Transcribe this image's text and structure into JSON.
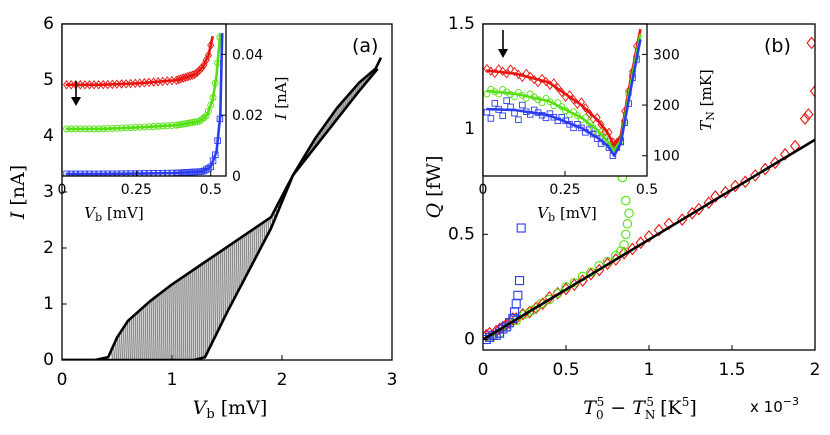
{
  "panels": {
    "a": {
      "label": "(a)",
      "xlabel_main": "V",
      "xlabel_sub": "b",
      "xlabel_unit": " [mV]",
      "ylabel_main": "I",
      "ylabel_unit": " [nA]",
      "xticks": [
        "0",
        "1",
        "2",
        "3"
      ],
      "yticks": [
        "0",
        "1",
        "2",
        "3",
        "4",
        "5",
        "6"
      ],
      "inset": {
        "xlabel_main": "V",
        "xlabel_sub": "b",
        "xlabel_unit": " [mV]",
        "ylabel_main": "I",
        "ylabel_unit": " [nA]",
        "xticks": [
          "0",
          "0.25",
          "0.5"
        ],
        "yticks": [
          "0",
          "0.02",
          "0.04"
        ]
      }
    },
    "b": {
      "label": "(b)",
      "xlabel_main": "T",
      "xlabel_sub0": "0",
      "xlabel_sup": "5",
      "xlabel_mid": " − T",
      "xlabel_sub1": "N",
      "xlabel_unit_a": " [K",
      "xlabel_unit_sup": "5",
      "xlabel_unit_b": "]",
      "ylabel_main": "Q",
      "ylabel_unit": " [fW]",
      "xticks": [
        "0",
        "0.5",
        "1",
        "1.5",
        "2"
      ],
      "yticks": [
        "0",
        "0.5",
        "1",
        "1.5"
      ],
      "x_multiplier": "x 10",
      "x_multiplier_exp": "−3",
      "inset": {
        "xlabel_main": "V",
        "xlabel_sub": "b",
        "xlabel_unit": " [mV]",
        "ylabel_main": "T",
        "ylabel_sub": "N",
        "ylabel_unit": " [mK]",
        "xticks": [
          "0",
          "0.25",
          "0.5"
        ],
        "yticks": [
          "100",
          "200",
          "300"
        ]
      }
    }
  },
  "colors": {
    "red": "#e8140f",
    "green": "#55e010",
    "blue": "#2b3cf0",
    "black": "#000000",
    "gray": "#8a8a8a"
  },
  "chart_data": [
    {
      "type": "line",
      "panel": "a",
      "xlim": [
        0,
        3
      ],
      "ylim": [
        0,
        6
      ],
      "grid": false,
      "series": [
        {
          "x": [
            0,
            0.3,
            0.42,
            0.5,
            0.6,
            0.8,
            1.0,
            1.3,
            1.6,
            1.9,
            2.1,
            2.3,
            2.5,
            2.7,
            2.87
          ],
          "y": [
            0,
            0,
            0.05,
            0.4,
            0.7,
            1.05,
            1.35,
            1.75,
            2.15,
            2.55,
            3.3,
            3.8,
            4.3,
            4.8,
            5.2
          ]
        },
        {
          "x": [
            0,
            0.8,
            1.2,
            1.3,
            1.35,
            1.5,
            1.7,
            1.9,
            2.1,
            2.3,
            2.5,
            2.7,
            2.85,
            2.9
          ],
          "y": [
            0,
            0,
            0,
            0.05,
            0.25,
            0.85,
            1.6,
            2.35,
            3.3,
            3.95,
            4.5,
            4.95,
            5.2,
            5.4
          ]
        }
      ]
    },
    {
      "type": "line",
      "panel": "a-inset",
      "xlim": [
        0,
        0.43
      ],
      "ylim": [
        0,
        0.05
      ],
      "series": [
        {
          "color": "red",
          "x": [
            0.01,
            0.1,
            0.2,
            0.3,
            0.35,
            0.37,
            0.385,
            0.395
          ],
          "y": [
            0.03,
            0.03,
            0.0305,
            0.0315,
            0.0335,
            0.036,
            0.04,
            0.046
          ]
        },
        {
          "color": "green",
          "x": [
            0.01,
            0.1,
            0.2,
            0.3,
            0.36,
            0.38,
            0.395,
            0.405,
            0.415
          ],
          "y": [
            0.0155,
            0.0155,
            0.016,
            0.0167,
            0.018,
            0.02,
            0.025,
            0.033,
            0.047
          ]
        },
        {
          "color": "blue",
          "x": [
            0.01,
            0.1,
            0.2,
            0.3,
            0.37,
            0.39,
            0.405,
            0.415,
            0.42
          ],
          "y": [
            0.0007,
            0.0007,
            0.0008,
            0.001,
            0.0015,
            0.003,
            0.008,
            0.02,
            0.047
          ]
        }
      ]
    },
    {
      "type": "scatter",
      "panel": "b",
      "xlim": [
        0,
        0.002
      ],
      "ylim": [
        -0.05,
        1.5
      ],
      "grid": false,
      "fit_line": {
        "x": [
          0,
          0.002
        ],
        "y": [
          0,
          0.95
        ]
      },
      "series": [
        {
          "color": "red",
          "marker": "diamond",
          "x": [
            2e-05,
            4e-05,
            6e-05,
            8e-05,
            0.0001,
            0.00012,
            0.00014,
            0.00016,
            0.00018,
            0.0002,
            0.00024,
            0.00028,
            0.00032,
            0.00036,
            0.0004,
            0.00045,
            0.0005,
            0.00055,
            0.0006,
            0.00065,
            0.0007,
            0.00075,
            0.0008,
            0.00085,
            0.0009,
            0.00095,
            0.001,
            0.00106,
            0.00112,
            0.0012,
            0.00126,
            0.0013,
            0.00136,
            0.0014,
            0.00146,
            0.00152,
            0.00158,
            0.00164,
            0.0017,
            0.00176,
            0.00182,
            0.00188,
            0.00194,
            0.002,
            0.00196,
            0.00198
          ],
          "y": [
            0.02,
            0.03,
            0.02,
            0.04,
            0.05,
            0.06,
            0.07,
            0.08,
            0.1,
            0.1,
            0.12,
            0.13,
            0.15,
            0.17,
            0.2,
            0.22,
            0.24,
            0.26,
            0.28,
            0.31,
            0.33,
            0.36,
            0.38,
            0.41,
            0.43,
            0.46,
            0.49,
            0.52,
            0.55,
            0.57,
            0.6,
            0.62,
            0.65,
            0.68,
            0.7,
            0.73,
            0.75,
            0.78,
            0.81,
            0.84,
            0.88,
            0.92,
            1.05,
            1.18,
            1.07,
            1.41
          ]
        },
        {
          "color": "green",
          "marker": "circle",
          "x": [
            5e-05,
            0.0001,
            0.00015,
            0.0002,
            0.00025,
            0.0003,
            0.00035,
            0.0004,
            0.00045,
            0.0005,
            0.00055,
            0.0006,
            0.00065,
            0.0007,
            0.00075,
            0.0008,
            0.00083,
            0.00085,
            0.00086,
            0.00087,
            0.00088,
            0.00086,
            0.00084
          ],
          "y": [
            0.01,
            0.03,
            0.06,
            0.09,
            0.12,
            0.14,
            0.17,
            0.19,
            0.22,
            0.25,
            0.27,
            0.3,
            0.32,
            0.35,
            0.37,
            0.4,
            0.42,
            0.45,
            0.5,
            0.55,
            0.6,
            0.66,
            0.77
          ]
        },
        {
          "color": "blue",
          "marker": "square",
          "x": [
            2e-05,
            4e-05,
            6e-05,
            8e-05,
            0.0001,
            0.00012,
            0.00014,
            0.00016,
            0.00018,
            0.00019,
            0.0002,
            0.00021,
            0.00022,
            0.00023
          ],
          "y": [
            0.0,
            0.01,
            0.02,
            0.02,
            0.03,
            0.05,
            0.06,
            0.08,
            0.1,
            0.13,
            0.17,
            0.21,
            0.28,
            0.53
          ]
        }
      ]
    },
    {
      "type": "line",
      "panel": "b-inset",
      "xlim": [
        0,
        0.5
      ],
      "ylim": [
        60,
        360
      ],
      "series": [
        {
          "color": "red",
          "x": [
            0.01,
            0.1,
            0.2,
            0.3,
            0.35,
            0.38,
            0.4,
            0.42,
            0.45,
            0.48
          ],
          "y": [
            268,
            262,
            245,
            200,
            170,
            145,
            120,
            140,
            250,
            350
          ]
        },
        {
          "color": "green",
          "x": [
            0.01,
            0.1,
            0.2,
            0.3,
            0.35,
            0.38,
            0.4,
            0.42,
            0.45,
            0.48
          ],
          "y": [
            228,
            222,
            208,
            175,
            150,
            128,
            110,
            130,
            240,
            340
          ]
        },
        {
          "color": "blue",
          "x": [
            0.01,
            0.1,
            0.2,
            0.3,
            0.35,
            0.38,
            0.4,
            0.42,
            0.45,
            0.48
          ],
          "y": [
            192,
            190,
            180,
            155,
            135,
            120,
            100,
            125,
            230,
            330
          ]
        }
      ]
    }
  ]
}
